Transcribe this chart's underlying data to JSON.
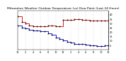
{
  "title": "Milwaukee Weather Outdoor Temperature (vs) Dew Point (Last 24 Hours)",
  "title_fontsize": 3.2,
  "background_color": "#ffffff",
  "plot_bg_color": "#ffffff",
  "temp_color": "#cc0000",
  "dew_color": "#0000cc",
  "dot_color": "#000000",
  "temp_data": [
    [
      0,
      38
    ],
    [
      1,
      32
    ],
    [
      2,
      30
    ],
    [
      3,
      28
    ],
    [
      4,
      27
    ],
    [
      5,
      27
    ],
    [
      6,
      27
    ],
    [
      7,
      27
    ],
    [
      8,
      28
    ],
    [
      9,
      28
    ],
    [
      10,
      27
    ],
    [
      11,
      27
    ],
    [
      12,
      34
    ],
    [
      13,
      34
    ],
    [
      14,
      34
    ],
    [
      15,
      35
    ],
    [
      16,
      35
    ],
    [
      17,
      34
    ],
    [
      18,
      34
    ],
    [
      19,
      33
    ],
    [
      20,
      33
    ],
    [
      21,
      33
    ],
    [
      22,
      33
    ],
    [
      23,
      33
    ],
    [
      24,
      33
    ]
  ],
  "dew_data": [
    [
      0,
      28
    ],
    [
      1,
      25
    ],
    [
      2,
      24
    ],
    [
      3,
      23
    ],
    [
      4,
      22
    ],
    [
      5,
      22
    ],
    [
      6,
      21
    ],
    [
      7,
      21
    ],
    [
      8,
      19
    ],
    [
      9,
      17
    ],
    [
      10,
      14
    ],
    [
      11,
      12
    ],
    [
      12,
      11
    ],
    [
      13,
      9
    ],
    [
      14,
      8
    ],
    [
      15,
      7
    ],
    [
      16,
      7
    ],
    [
      17,
      7
    ],
    [
      18,
      6
    ],
    [
      19,
      5
    ],
    [
      20,
      5
    ],
    [
      21,
      4
    ],
    [
      22,
      4
    ],
    [
      23,
      5
    ],
    [
      24,
      5
    ]
  ],
  "ylim": [
    0,
    45
  ],
  "xlim": [
    0,
    24
  ],
  "yticks": [
    5,
    10,
    15,
    20,
    25,
    30,
    35,
    40
  ],
  "xtick_positions": [
    0,
    2,
    4,
    6,
    8,
    10,
    12,
    14,
    16,
    18,
    20,
    22,
    24
  ],
  "xtick_labels": [
    "12",
    "2",
    "4",
    "6",
    "8",
    "10",
    "12",
    "2",
    "4",
    "6",
    "8",
    "10",
    "12"
  ],
  "grid_positions": [
    0,
    2,
    4,
    6,
    8,
    10,
    12,
    14,
    16,
    18,
    20,
    22,
    24
  ],
  "grid_color": "#aaaaaa",
  "tick_fontsize": 2.5,
  "right_border_color": "#000000"
}
